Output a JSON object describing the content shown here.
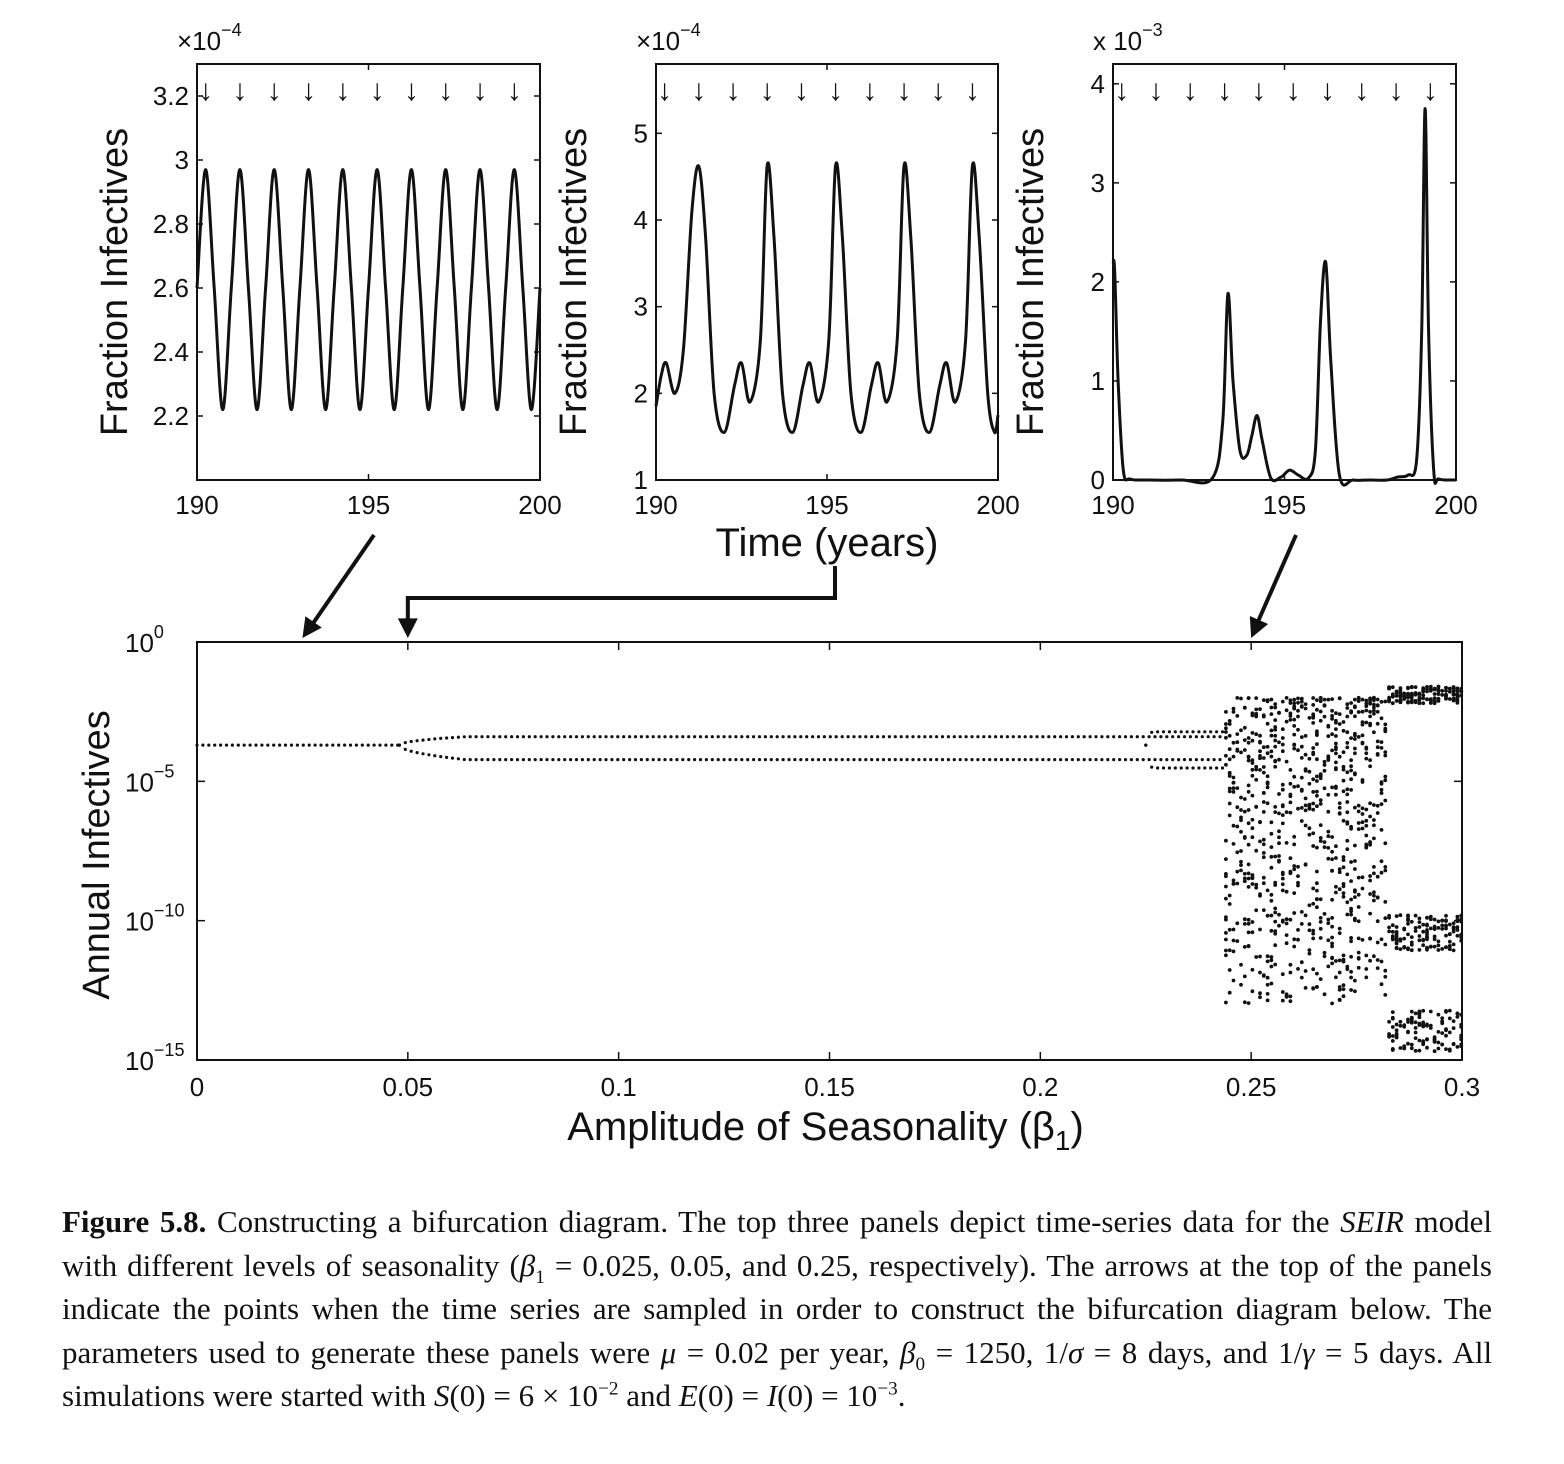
{
  "chart_data": [
    {
      "id": "panel_a",
      "type": "line",
      "exponent_label": "×10",
      "exponent_power": "−4",
      "ylabel": "Fraction Infectives",
      "xlim": [
        190,
        200
      ],
      "ylim": [
        2.0,
        3.3
      ],
      "xticks": [
        190,
        195,
        200
      ],
      "xtick_labels": [
        "190",
        "195",
        "200"
      ],
      "yticks": [
        2.2,
        2.4,
        2.6,
        2.8,
        3.0,
        3.2
      ],
      "ytick_labels": [
        "2.2",
        "2.4",
        "2.6",
        "2.8",
        "3",
        "3.2"
      ],
      "sample_arrows": "↓",
      "sample_times": [
        190.25,
        191.25,
        192.25,
        193.25,
        194.25,
        195.25,
        196.25,
        197.25,
        198.25,
        199.25
      ],
      "series": [
        {
          "x": [
            190.0,
            190.25,
            190.5,
            190.75,
            191.0,
            191.25,
            191.5,
            191.75,
            192.0,
            192.25,
            192.5,
            192.75,
            193.0,
            193.25,
            193.5,
            193.75,
            194.0,
            194.25,
            194.5,
            194.75,
            195.0,
            195.25,
            195.5,
            195.75,
            196.0,
            196.25,
            196.5,
            196.75,
            197.0,
            197.25,
            197.5,
            197.75,
            198.0,
            198.25,
            198.5,
            198.75,
            199.0,
            199.25,
            199.5,
            199.75,
            200.0
          ],
          "y": [
            2.6,
            2.97,
            2.6,
            2.22,
            2.6,
            2.97,
            2.6,
            2.22,
            2.6,
            2.97,
            2.6,
            2.22,
            2.6,
            2.97,
            2.6,
            2.22,
            2.6,
            2.97,
            2.6,
            2.22,
            2.6,
            2.97,
            2.6,
            2.22,
            2.6,
            2.97,
            2.6,
            2.22,
            2.6,
            2.97,
            2.6,
            2.22,
            2.6,
            2.97,
            2.6,
            2.22,
            2.6,
            2.97,
            2.6,
            2.22,
            2.6
          ]
        }
      ]
    },
    {
      "id": "panel_b",
      "type": "line",
      "exponent_label": "×10",
      "exponent_power": "−4",
      "ylabel": "Fraction Infectives",
      "xlabel": "Time (years)",
      "xlim": [
        190,
        200
      ],
      "ylim": [
        1,
        5.8
      ],
      "xticks": [
        190,
        195,
        200
      ],
      "xtick_labels": [
        "190",
        "195",
        "200"
      ],
      "yticks": [
        1,
        2,
        3,
        4,
        5
      ],
      "ytick_labels": [
        "1",
        "2",
        "3",
        "4",
        "5"
      ],
      "sample_arrows": "↓",
      "sample_times": [
        190.25,
        191.25,
        192.25,
        193.25,
        194.25,
        195.25,
        196.25,
        197.25,
        198.25,
        199.25
      ],
      "series": [
        {
          "x": [
            190.0,
            190.15,
            190.3,
            190.55,
            190.8,
            191.05,
            191.25,
            191.45,
            191.7,
            192.0,
            192.3,
            192.5,
            192.75,
            193.05,
            193.25,
            193.45,
            193.7,
            194.0,
            194.3,
            194.5,
            194.75,
            195.05,
            195.25,
            195.45,
            195.7,
            196.0,
            196.3,
            196.5,
            196.75,
            197.05,
            197.25,
            197.45,
            197.7,
            198.0,
            198.3,
            198.5,
            198.75,
            199.05,
            199.25,
            199.45,
            199.7,
            199.9,
            200.0
          ],
          "y": [
            1.85,
            2.2,
            2.35,
            2.0,
            2.5,
            4.1,
            4.62,
            3.8,
            2.0,
            1.55,
            2.1,
            2.35,
            1.9,
            2.6,
            4.62,
            3.8,
            2.0,
            1.55,
            2.1,
            2.35,
            1.9,
            2.6,
            4.62,
            3.8,
            2.0,
            1.55,
            2.1,
            2.35,
            1.9,
            2.6,
            4.62,
            3.8,
            2.0,
            1.55,
            2.1,
            2.35,
            1.9,
            2.6,
            4.62,
            3.8,
            2.0,
            1.55,
            1.75
          ]
        }
      ]
    },
    {
      "id": "panel_c",
      "type": "line",
      "exponent_label": "x 10",
      "exponent_power": "−3",
      "ylabel": "Fraction Infectives",
      "xlim": [
        190,
        200
      ],
      "ylim": [
        0,
        4.2
      ],
      "xticks": [
        190,
        195,
        200
      ],
      "xtick_labels": [
        "190",
        "195",
        "200"
      ],
      "yticks": [
        0,
        1,
        2,
        3,
        4
      ],
      "ytick_labels": [
        "0",
        "1",
        "2",
        "3",
        "4"
      ],
      "sample_arrows": "↓",
      "sample_times": [
        190.25,
        191.25,
        192.25,
        193.25,
        194.25,
        195.25,
        196.25,
        197.25,
        198.25,
        199.25
      ],
      "series": [
        {
          "x": [
            190.0,
            190.05,
            190.15,
            190.3,
            190.5,
            191.0,
            192.0,
            192.9,
            193.2,
            193.35,
            193.5,
            193.7,
            193.9,
            194.05,
            194.2,
            194.35,
            194.6,
            194.9,
            195.15,
            195.4,
            195.7,
            195.9,
            196.05,
            196.2,
            196.35,
            196.6,
            197.0,
            197.5,
            198.0,
            198.3,
            198.6,
            198.85,
            199.0,
            199.1,
            199.2,
            199.35,
            199.5,
            200.0
          ],
          "y": [
            2.2,
            2.1,
            1.0,
            0.1,
            0.01,
            0.0,
            0.0,
            0.02,
            0.6,
            1.88,
            1.0,
            0.3,
            0.25,
            0.45,
            0.65,
            0.4,
            0.02,
            0.03,
            0.1,
            0.05,
            0.02,
            0.3,
            1.6,
            2.2,
            1.2,
            0.05,
            0.0,
            0.0,
            0.0,
            0.03,
            0.05,
            0.2,
            1.5,
            3.75,
            1.5,
            0.1,
            0.01,
            0.0
          ]
        }
      ]
    },
    {
      "id": "bifurcation",
      "type": "scatter",
      "xlabel": "Amplitude of Seasonality (β",
      "xlabel_sub": "1",
      "xlabel_end": ")",
      "ylabel": "Annual Infectives",
      "yscale": "log",
      "xlim": [
        0,
        0.3
      ],
      "ylim": [
        1e-15,
        1
      ],
      "xticks": [
        0,
        0.05,
        0.1,
        0.15,
        0.2,
        0.25,
        0.3
      ],
      "xtick_labels": [
        "0",
        "0.05",
        "0.1",
        "0.15",
        "0.2",
        "0.25",
        "0.3"
      ],
      "ytick_base": "10",
      "yticks": [
        1,
        1e-05,
        1e-10,
        1e-15
      ],
      "ytick_exponents": [
        "0",
        "−5",
        "−10",
        "−15"
      ],
      "periodic_branches": [
        {
          "x_range": [
            0,
            0.048
          ],
          "y": [
            0.0002
          ]
        },
        {
          "x_range": [
            0.048,
            0.244
          ],
          "y": [
            0.0004,
            6e-05
          ]
        },
        {
          "x_range": [
            0.225,
            0.244
          ],
          "y": [
            0.0006,
            3e-05
          ]
        }
      ],
      "chaotic_region": {
        "x_range": [
          0.244,
          0.3
        ],
        "y_range": [
          1e-13,
          0.01
        ]
      },
      "pointers": [
        {
          "from_panel": "panel_a",
          "beta1": 0.025
        },
        {
          "from_panel": "panel_b",
          "beta1": 0.05
        },
        {
          "from_panel": "panel_c",
          "beta1": 0.25
        }
      ]
    }
  ],
  "caption": {
    "label": "Figure 5.8.",
    "text_1": "Constructing a bifurcation diagram. The top three panels depict time-series data for the",
    "model": "SEIR",
    "text_2": "model with different levels of seasonality (",
    "beta": "β",
    "beta_sub": "1",
    "text_3": "= 0.025, 0.05, and 0.25, respectively). The arrows at the top of the panels indicate the points when the time series are sampled in order to construct the bifurcation diagram below. The parameters used to generate these panels were",
    "mu": "μ",
    "text_4": "= 0.02 per year,",
    "beta0": "β",
    "beta0_sub": "0",
    "text_5": "= 1250, 1/",
    "sigma": "σ",
    "text_6": "= 8 days, and 1/",
    "gamma": "γ",
    "text_7": "= 5 days. All simulations were started with",
    "S0": "S",
    "text_8": "(0) = 6 × 10",
    "exp_1": "−2",
    "text_9": "and",
    "E0": "E",
    "text_10": "(0) =",
    "I0": "I",
    "text_11": "(0) = 10",
    "exp_2": "−3",
    "text_12": "."
  }
}
